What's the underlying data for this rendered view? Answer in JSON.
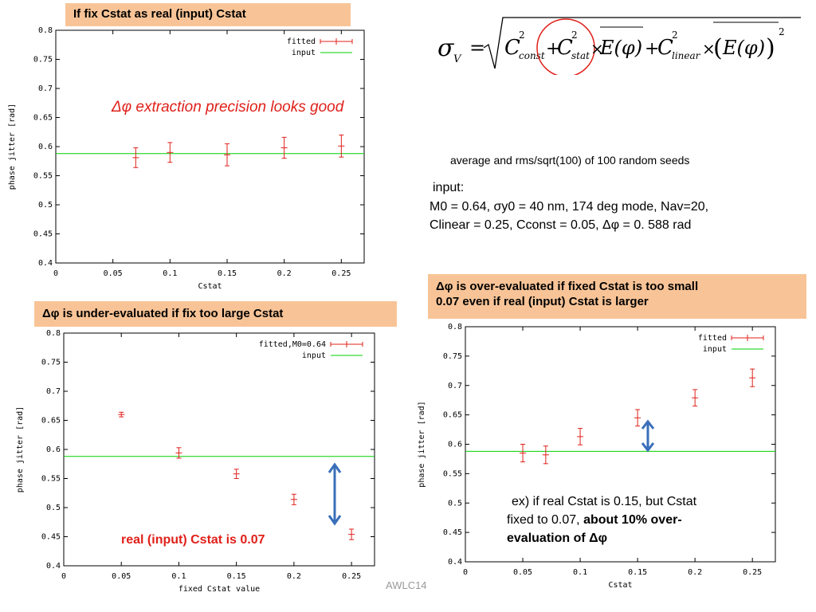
{
  "titles": {
    "top_left": "If fix Cstat as real (input)  Cstat",
    "bottom_left": "Δφ is under-evaluated  if fix too large Cstat",
    "bottom_right_line1": "Δφ is over-evaluated  if fixed Cstat is too small",
    "bottom_right_line2": "0.07 even if real (input) Cstat is larger"
  },
  "notes": {
    "precision": "Δφ extraction precision looks good",
    "average": "average and rms/sqrt(100) of 100 random seeds",
    "input_label": "input:",
    "input_line1": "M0 = 0.64,  σy0 = 40 nm, 174 deg mode, Nav=20,",
    "input_line2": "Clinear = 0.25, Cconst = 0.05, Δφ = 0. 588 rad",
    "real_cstat": "real (input) Cstat is 0.07",
    "example_line1": "ex)  if real Cstat is 0.15, but Cstat",
    "example_line2_plain": "fixed to 0.07, ",
    "example_line2_bold": "about 10% over-",
    "example_line3": "evaluation of Δφ",
    "footer": "AWLC14"
  },
  "formula": {
    "lhs": "σ",
    "lhs_sub": "V",
    "terms": [
      "C",
      "const",
      "C",
      "stat",
      "E(φ)",
      "C",
      "linear",
      "E(φ)"
    ]
  },
  "colors": {
    "fitted": "#e0201a",
    "input": "#00d000",
    "highlight": "#f8c497",
    "arrow": "#3a6fba"
  },
  "chart_data": [
    {
      "type": "scatter",
      "xlabel": "Cstat",
      "ylabel": "phase jitter [rad]",
      "xlim": [
        0,
        0.27
      ],
      "ylim": [
        0.4,
        0.8
      ],
      "xticks": [
        0,
        0.05,
        0.1,
        0.15,
        0.2,
        0.25
      ],
      "xtick_labels": [
        "0",
        "0.05",
        "0.1",
        "0.15",
        "0.2",
        "0.25"
      ],
      "yticks": [
        0.4,
        0.45,
        0.5,
        0.55,
        0.6,
        0.65,
        0.7,
        0.75,
        0.8
      ],
      "ytick_labels": [
        "0.4",
        "0.45",
        "0.5",
        "0.55",
        "0.6",
        "0.65",
        "0.7",
        "0.75",
        "0.8"
      ],
      "legend": [
        "fitted",
        "input"
      ],
      "legend_position": "top-right",
      "series": [
        {
          "name": "fitted",
          "x": [
            0.07,
            0.1,
            0.15,
            0.2,
            0.25
          ],
          "y": [
            0.581,
            0.59,
            0.586,
            0.598,
            0.601
          ],
          "err": [
            0.017,
            0.017,
            0.019,
            0.018,
            0.019
          ]
        },
        {
          "name": "input",
          "hline": 0.588
        }
      ]
    },
    {
      "type": "scatter",
      "xlabel": "fixed Cstat value",
      "ylabel": "phase jitter [rad]",
      "xlim": [
        0,
        0.27
      ],
      "ylim": [
        0.4,
        0.8
      ],
      "xticks": [
        0,
        0.05,
        0.1,
        0.15,
        0.2,
        0.25
      ],
      "xtick_labels": [
        "0",
        "0.05",
        "0.1",
        "0.15",
        "0.2",
        "0.25"
      ],
      "yticks": [
        0.4,
        0.45,
        0.5,
        0.55,
        0.6,
        0.65,
        0.7,
        0.75,
        0.8
      ],
      "ytick_labels": [
        "0.4",
        "0.45",
        "0.5",
        "0.55",
        "0.6",
        "0.65",
        "0.7",
        "0.75",
        "0.8"
      ],
      "legend": [
        "fitted,M0=0.64",
        "input"
      ],
      "legend_position": "top-right",
      "series": [
        {
          "name": "fitted,M0=0.64",
          "x": [
            0.05,
            0.1,
            0.15,
            0.2,
            0.25
          ],
          "y": [
            0.66,
            0.594,
            0.558,
            0.514,
            0.454
          ],
          "err": [
            0.004,
            0.009,
            0.008,
            0.009,
            0.009
          ]
        },
        {
          "name": "input",
          "hline": 0.588
        }
      ]
    },
    {
      "type": "scatter",
      "xlabel": "Cstat",
      "ylabel": "phase jitter [rad]",
      "xlim": [
        0,
        0.27
      ],
      "ylim": [
        0.4,
        0.8
      ],
      "xticks": [
        0,
        0.05,
        0.1,
        0.15,
        0.2,
        0.25
      ],
      "xtick_labels": [
        "0",
        "0.05",
        "0.1",
        "0.15",
        "0.2",
        "0.25"
      ],
      "yticks": [
        0.4,
        0.45,
        0.5,
        0.55,
        0.6,
        0.65,
        0.7,
        0.75,
        0.8
      ],
      "ytick_labels": [
        "0.4",
        "0.45",
        "0.5",
        "0.55",
        "0.6",
        "0.65",
        "0.7",
        "0.75",
        "0.8"
      ],
      "legend": [
        "fitted",
        "input"
      ],
      "legend_position": "top-right",
      "series": [
        {
          "name": "fitted",
          "x": [
            0.05,
            0.07,
            0.1,
            0.15,
            0.2,
            0.25
          ],
          "y": [
            0.585,
            0.582,
            0.613,
            0.645,
            0.679,
            0.713
          ],
          "err": [
            0.015,
            0.015,
            0.014,
            0.014,
            0.014,
            0.015
          ]
        },
        {
          "name": "input",
          "hline": 0.588
        }
      ]
    }
  ]
}
